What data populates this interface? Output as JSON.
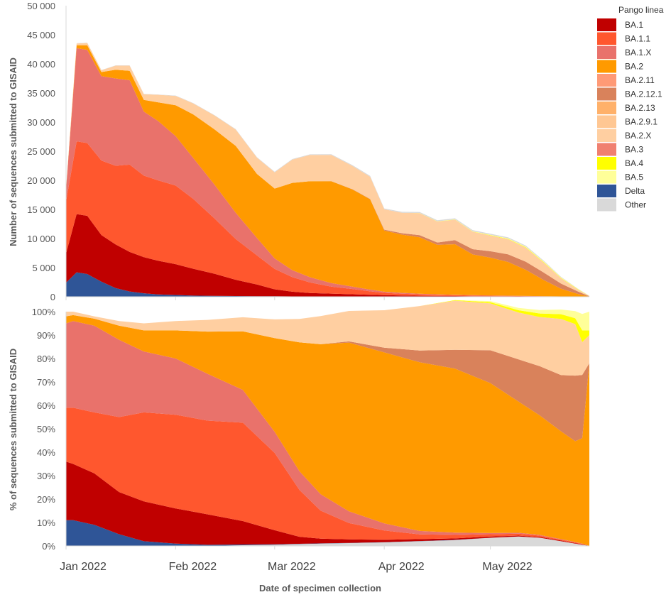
{
  "chart_data": [
    {
      "type": "area",
      "stacked": true,
      "title": "",
      "xlabel": "Date of specimen collection",
      "ylabel": "Number of sequences submitted to GISAID",
      "ylim": [
        0,
        50000
      ],
      "yticks": [
        0,
        5000,
        10000,
        15000,
        20000,
        25000,
        30000,
        35000,
        40000,
        45000,
        50000
      ],
      "ytick_labels": [
        "0",
        "5 000",
        "10 000",
        "15 000",
        "20 000",
        "25 000",
        "30 000",
        "35 000",
        "40 000",
        "45 000",
        "50 000"
      ],
      "x_days": [
        0,
        3,
        6,
        10,
        14,
        18,
        22,
        26,
        31,
        36,
        42,
        48,
        54,
        59,
        64,
        69,
        75,
        81,
        86,
        90,
        95,
        100,
        105,
        110,
        115,
        120,
        125,
        130,
        135,
        140,
        145,
        148
      ],
      "series": [
        {
          "name": "Delta",
          "values": [
            2400,
            4200,
            3900,
            2600,
            1500,
            900,
            600,
            400,
            300,
            200,
            150,
            120,
            100,
            80,
            60,
            50,
            40,
            30,
            30,
            20,
            20,
            20,
            20,
            20,
            20,
            20,
            20,
            10,
            10,
            10,
            10,
            0
          ]
        },
        {
          "name": "BA.1",
          "values": [
            5000,
            10000,
            10000,
            8000,
            7500,
            6800,
            6200,
            5800,
            5300,
            4600,
            3800,
            2800,
            2000,
            1200,
            800,
            600,
            500,
            400,
            300,
            250,
            200,
            150,
            120,
            100,
            80,
            60,
            50,
            40,
            30,
            20,
            10,
            0
          ]
        },
        {
          "name": "BA.1.1",
          "values": [
            9000,
            12500,
            12500,
            12800,
            13500,
            15000,
            14000,
            13800,
            13500,
            12000,
            9500,
            7000,
            5000,
            3500,
            2500,
            1800,
            1200,
            900,
            600,
            400,
            300,
            250,
            200,
            150,
            120,
            100,
            80,
            60,
            40,
            20,
            10,
            0
          ]
        },
        {
          "name": "BA.1.X",
          "values": [
            2000,
            16000,
            16000,
            14500,
            15000,
            14500,
            11000,
            10200,
            8500,
            7000,
            5800,
            4500,
            3000,
            1800,
            1200,
            900,
            600,
            400,
            300,
            200,
            150,
            100,
            80,
            60,
            50,
            40,
            30,
            20,
            20,
            10,
            10,
            0
          ]
        },
        {
          "name": "BA.2",
          "values": [
            100,
            500,
            800,
            700,
            1500,
            1600,
            2000,
            3200,
            5300,
            7500,
            9500,
            11500,
            11000,
            12000,
            15000,
            16500,
            17500,
            16700,
            15500,
            10500,
            10000,
            9700,
            8500,
            8700,
            7000,
            6500,
            5800,
            4500,
            2800,
            1300,
            400,
            50
          ]
        },
        {
          "name": "BA.2.12.1",
          "values": [
            0,
            0,
            0,
            0,
            0,
            0,
            0,
            0,
            0,
            0,
            0,
            0,
            0,
            0,
            0,
            0,
            20,
            50,
            80,
            150,
            250,
            350,
            400,
            700,
            900,
            1100,
            1300,
            1400,
            1300,
            900,
            400,
            50
          ]
        },
        {
          "name": "BA.2.X",
          "values": [
            50,
            300,
            400,
            300,
            700,
            900,
            1000,
            1300,
            1600,
            1900,
            2400,
            2800,
            2800,
            2800,
            4000,
            4500,
            4500,
            4000,
            3800,
            3500,
            3500,
            3800,
            3600,
            3500,
            3000,
            2700,
            2600,
            2400,
            1700,
            900,
            300,
            50
          ]
        },
        {
          "name": "BA.4",
          "values": [
            0,
            0,
            0,
            0,
            0,
            0,
            0,
            0,
            0,
            0,
            0,
            0,
            0,
            0,
            0,
            0,
            0,
            0,
            0,
            0,
            0,
            10,
            20,
            30,
            40,
            50,
            60,
            80,
            80,
            60,
            40,
            10
          ]
        },
        {
          "name": "BA.5",
          "values": [
            0,
            0,
            0,
            0,
            0,
            0,
            0,
            0,
            0,
            0,
            0,
            0,
            0,
            0,
            0,
            0,
            0,
            0,
            0,
            0,
            0,
            10,
            20,
            30,
            40,
            60,
            80,
            100,
            120,
            100,
            60,
            20
          ]
        },
        {
          "name": "Other",
          "values": [
            20,
            50,
            50,
            50,
            50,
            50,
            50,
            50,
            60,
            60,
            60,
            70,
            80,
            90,
            100,
            110,
            120,
            130,
            140,
            150,
            160,
            170,
            180,
            190,
            200,
            200,
            200,
            180,
            150,
            100,
            50,
            10
          ]
        }
      ]
    },
    {
      "type": "area",
      "stacked": true,
      "percent": true,
      "title": "",
      "xlabel": "Date of specimen collection",
      "ylabel": "% of sequences submitted to GISAID",
      "ylim": [
        0,
        100
      ],
      "yticks": [
        0,
        10,
        20,
        30,
        40,
        50,
        60,
        70,
        80,
        90,
        100
      ],
      "ytick_labels": [
        "0%",
        "10%",
        "20%",
        "30%",
        "40%",
        "50%",
        "60%",
        "70%",
        "80%",
        "90%",
        "100%"
      ],
      "x_days": [
        0,
        2,
        8,
        15,
        22,
        31,
        40,
        50,
        59,
        66,
        72,
        80,
        90,
        100,
        110,
        120,
        128,
        134,
        140,
        144,
        146,
        148
      ],
      "series": [
        {
          "name": "Other",
          "values": [
            0,
            0,
            0,
            0,
            0,
            0,
            0,
            0.3,
            0.5,
            0.8,
            1,
            1.2,
            1.5,
            2,
            2.5,
            3.5,
            4,
            3.5,
            2,
            1,
            0.5,
            0
          ]
        },
        {
          "name": "Delta",
          "values": [
            11,
            11,
            9,
            5,
            2,
            1,
            0.5,
            0.3,
            0.2,
            0.1,
            0.1,
            0.1,
            0.1,
            0.1,
            0.1,
            0,
            0,
            0,
            0,
            0,
            0,
            0
          ]
        },
        {
          "name": "BA.1",
          "values": [
            25,
            24,
            22,
            18,
            17,
            15,
            13,
            10,
            6,
            3,
            2,
            1.5,
            1,
            0.8,
            0.6,
            0.5,
            0.4,
            0.3,
            0.3,
            0.2,
            0.2,
            0
          ]
        },
        {
          "name": "BA.1.1",
          "values": [
            23,
            24,
            26,
            32,
            38,
            40,
            40,
            42,
            33,
            20,
            12,
            7,
            4,
            2,
            1.5,
            1,
            0.8,
            0.6,
            0.4,
            0.3,
            0.2,
            0
          ]
        },
        {
          "name": "BA.1.X",
          "values": [
            36,
            37,
            37,
            33,
            26,
            24,
            20,
            14,
            9,
            8,
            7,
            5,
            3,
            1.5,
            1,
            0.5,
            0.4,
            0.3,
            0.2,
            0.2,
            0.1,
            0
          ]
        },
        {
          "name": "BA.2",
          "values": [
            3,
            2.5,
            3,
            6,
            9,
            12,
            18,
            25,
            40,
            55,
            64,
            72,
            73,
            72,
            70,
            64,
            56,
            51,
            46,
            43,
            45,
            78
          ]
        },
        {
          "name": "BA.2.12.1",
          "values": [
            0,
            0,
            0,
            0,
            0,
            0,
            0,
            0,
            0,
            0,
            0,
            0.5,
            2,
            5,
            8,
            14,
            18,
            21,
            24,
            28,
            27,
            0
          ]
        },
        {
          "name": "BA.2.X",
          "values": [
            2,
            1.5,
            1,
            2,
            3,
            4,
            5,
            6,
            8,
            10,
            12,
            13,
            16,
            19,
            21,
            20,
            20,
            21,
            24,
            22,
            14,
            12
          ]
        },
        {
          "name": "BA.4",
          "values": [
            0,
            0,
            0,
            0,
            0,
            0,
            0,
            0,
            0,
            0,
            0,
            0,
            0,
            0,
            0.2,
            0.5,
            1,
            1.5,
            2,
            2.5,
            5,
            2
          ]
        },
        {
          "name": "BA.5",
          "values": [
            0,
            0,
            0,
            0,
            0,
            0,
            0,
            0,
            0,
            0,
            0,
            0,
            0,
            0,
            0,
            0.5,
            1,
            1.5,
            2,
            3,
            7,
            8
          ]
        }
      ]
    }
  ],
  "x_axis": {
    "label": "Date of specimen collection",
    "ticks": [
      {
        "day": 0,
        "label": "Jan 2022"
      },
      {
        "day": 31,
        "label": "Feb 2022"
      },
      {
        "day": 59,
        "label": "Mar 2022"
      },
      {
        "day": 90,
        "label": "Apr 2022"
      },
      {
        "day": 120,
        "label": "May 2022"
      }
    ]
  },
  "legend": {
    "title": "Pango linea",
    "placement": "top-right",
    "entries": [
      {
        "name": "BA.1",
        "color": "#C00000"
      },
      {
        "name": "BA.1.1",
        "color": "#FF572E"
      },
      {
        "name": "BA.1.X",
        "color": "#E9726B"
      },
      {
        "name": "BA.2",
        "color": "#FF9A00"
      },
      {
        "name": "BA.2.11",
        "color": "#FF9A76"
      },
      {
        "name": "BA.2.12.1",
        "color": "#D9825B"
      },
      {
        "name": "BA.2.13",
        "color": "#FFB16A"
      },
      {
        "name": "BA.2.9.1",
        "color": "#FFC793"
      },
      {
        "name": "BA.2.X",
        "color": "#FFCFA1"
      },
      {
        "name": "BA.3",
        "color": "#F08070"
      },
      {
        "name": "BA.4",
        "color": "#FFFF00"
      },
      {
        "name": "BA.5",
        "color": "#FFFF99"
      },
      {
        "name": "Delta",
        "color": "#2F5597"
      },
      {
        "name": "Other",
        "color": "#D9D9D9"
      }
    ]
  }
}
